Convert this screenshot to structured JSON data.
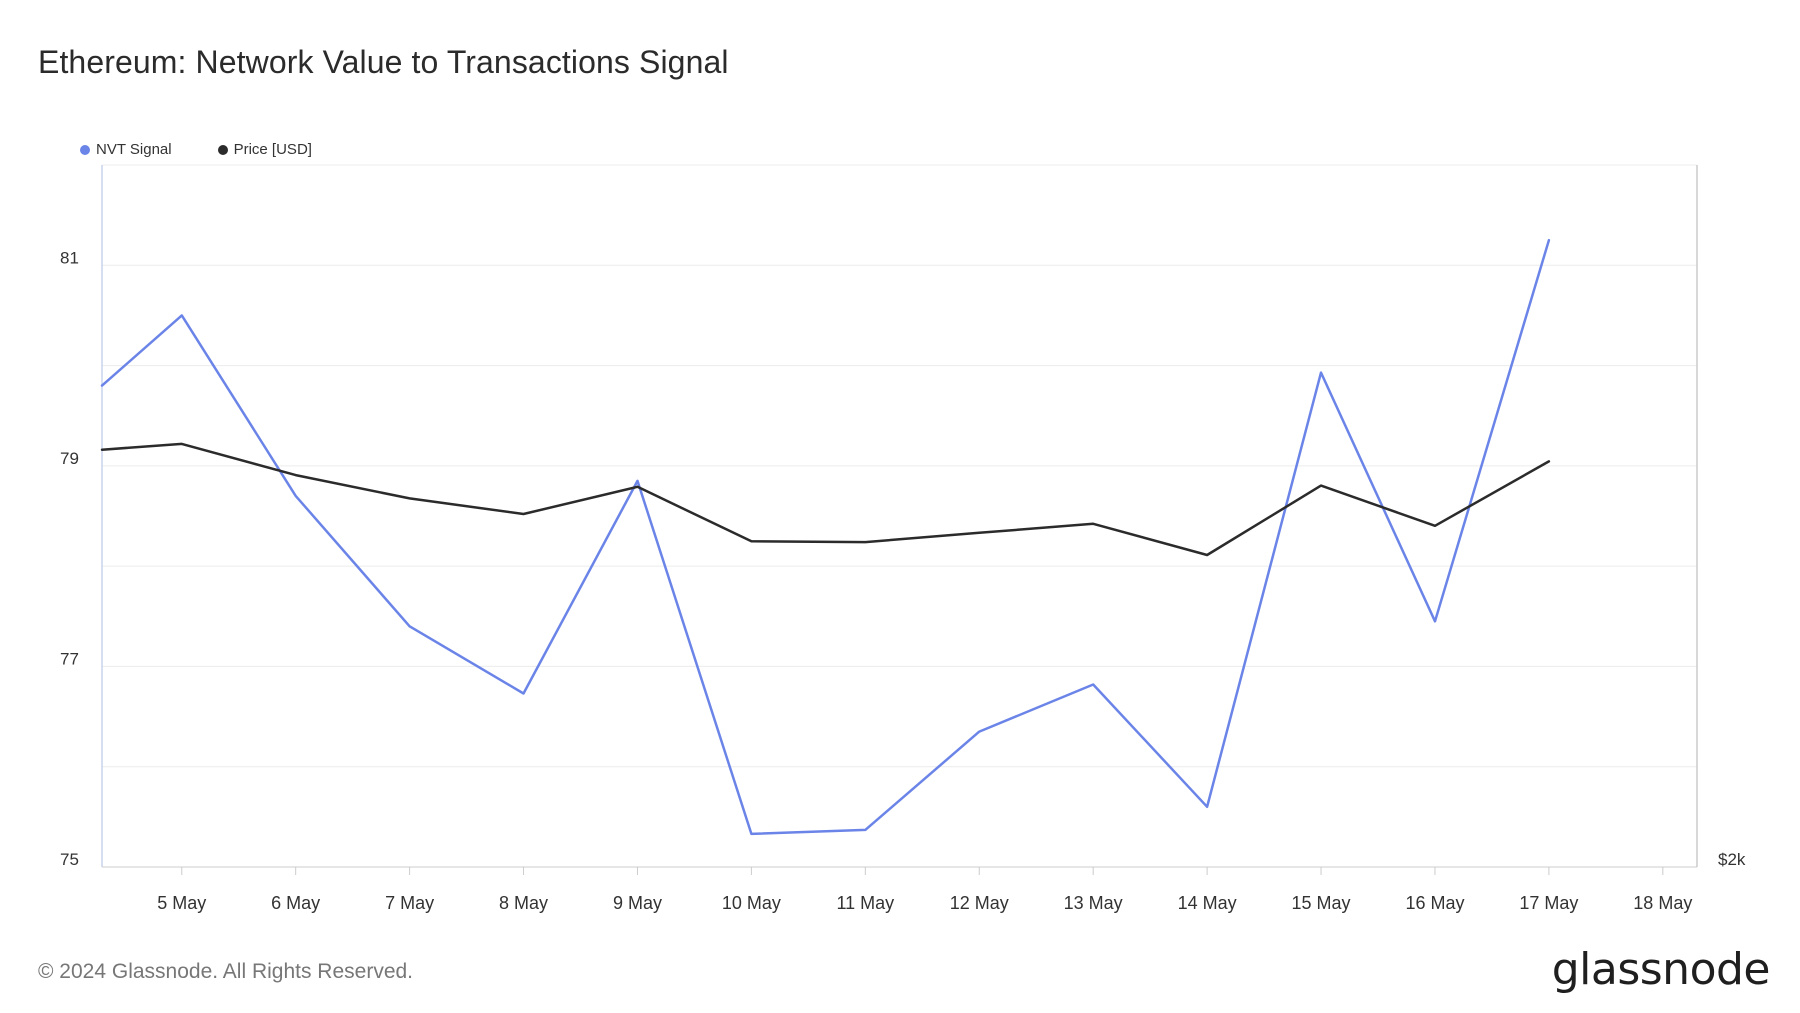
{
  "page": {
    "title": "Ethereum: Network Value to Transactions Signal",
    "copyright": "© 2024 Glassnode. All Rights Reserved.",
    "brand": "glassnode"
  },
  "chart_data": {
    "type": "line",
    "title": "Ethereum: Network Value to Transactions Signal",
    "x_axis": {
      "ticks": [
        "5 May",
        "6 May",
        "7 May",
        "8 May",
        "9 May",
        "10 May",
        "11 May",
        "12 May",
        "13 May",
        "14 May",
        "15 May",
        "16 May",
        "17 May",
        "18 May"
      ],
      "range": [
        "4.3 May",
        "18.3 May"
      ]
    },
    "y_axis_left": {
      "ticks": [
        "81",
        "79",
        "77",
        "75"
      ],
      "range": [
        75,
        82
      ]
    },
    "y_axis_right": {
      "ticks": [
        "$2k"
      ]
    },
    "grid": true,
    "legend_position": "top-left",
    "series": [
      {
        "name": "NVT Signal",
        "color": "#6b84e8",
        "axis": "left",
        "x": [
          4.3,
          5,
          6,
          7,
          8,
          9,
          10,
          11,
          12,
          13,
          14,
          15,
          16,
          17
        ],
        "values": [
          79.8,
          80.5,
          78.7,
          77.4,
          76.73,
          78.85,
          75.33,
          75.37,
          76.35,
          76.82,
          75.6,
          79.93,
          77.45,
          81.25
        ]
      },
      {
        "name": "Price [USD]",
        "color": "#2b2b2b",
        "axis": "right",
        "x": [
          4.3,
          5,
          6,
          7,
          8,
          9,
          10,
          11,
          12,
          13,
          14,
          15,
          16,
          17
        ],
        "values": [
          3070,
          3085,
          3005,
          2945,
          2905,
          2975,
          2835,
          2833,
          2857,
          2880,
          2800,
          2978,
          2875,
          3040
        ]
      }
    ]
  }
}
